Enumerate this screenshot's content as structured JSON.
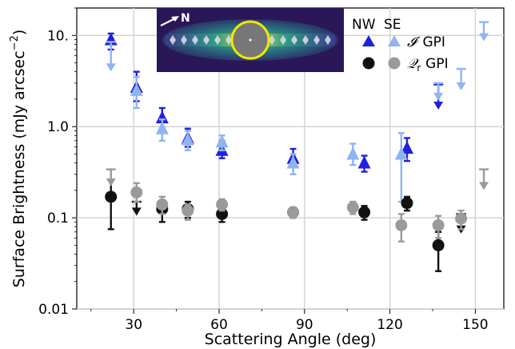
{
  "chart_data": {
    "type": "scatter",
    "title": "",
    "xlabel": "Scattering Angle (deg)",
    "ylabel": "Surface Brightness (mJy arcsec$^{-2}$)",
    "ylabel_parts": [
      "Surface Brightness (mJy arcsec",
      "−2",
      ")"
    ],
    "xlim": [
      10,
      160
    ],
    "ylim": [
      0.01,
      20
    ],
    "yscale": "log",
    "xticks": [
      30,
      60,
      90,
      120,
      150
    ],
    "xtick_labels": [
      "30",
      "60",
      "90",
      "120",
      "150"
    ],
    "yticks": [
      0.01,
      0.1,
      1.0,
      10
    ],
    "ytick_labels": [
      "0.01",
      "0.1",
      "1.0",
      "10."
    ],
    "grid": true,
    "legend": {
      "position": "top-right",
      "headers": [
        "NW",
        "SE"
      ],
      "rows": [
        {
          "label_symbol": "𝓘",
          "label_text": "GPI",
          "marker": "triangle"
        },
        {
          "label_symbol": "𝒬",
          "label_sub": "r",
          "label_text": "GPI",
          "marker": "circle"
        }
      ]
    },
    "colors": {
      "I_NW": "#2020e0",
      "I_SE": "#8fb4f0",
      "Q_NW": "#111111",
      "Q_SE": "#9a9a9a"
    },
    "series": [
      {
        "name": "𝓘 GPI NW",
        "marker": "triangle",
        "color_key": "I_NW",
        "points": [
          {
            "x": 22,
            "y": 9.0,
            "lo": 7.0,
            "hi": 10.5
          },
          {
            "x": 31,
            "y": 2.7,
            "lo": 1.9,
            "hi": 4.0
          },
          {
            "x": 40,
            "y": 1.25,
            "lo": 0.95,
            "hi": 1.6
          },
          {
            "x": 49,
            "y": 0.75,
            "lo": 0.6,
            "hi": 0.95
          },
          {
            "x": 61,
            "y": 0.55,
            "lo": 0.45,
            "hi": 0.7
          },
          {
            "x": 86,
            "y": 0.45,
            "lo": 0.38,
            "hi": 0.57
          },
          {
            "x": 111,
            "y": 0.4,
            "lo": 0.32,
            "hi": 0.48
          },
          {
            "x": 126,
            "y": 0.58,
            "lo": 0.42,
            "hi": 0.75
          },
          {
            "x": 137,
            "y": 2.9,
            "upper_limit": true,
            "arrow_to": 1.6
          }
        ]
      },
      {
        "name": "𝓘 GPI SE",
        "marker": "triangle",
        "color_key": "I_SE",
        "points": [
          {
            "x": 22,
            "y": 8.5,
            "upper_limit": true,
            "arrow_to": 4.2
          },
          {
            "x": 31,
            "y": 2.5,
            "lo": 1.6,
            "hi": 3.5
          },
          {
            "x": 40,
            "y": 0.95,
            "lo": 0.7,
            "hi": 1.2
          },
          {
            "x": 49,
            "y": 0.72,
            "lo": 0.55,
            "hi": 0.9
          },
          {
            "x": 61,
            "y": 0.68,
            "lo": 0.55,
            "hi": 0.8
          },
          {
            "x": 86,
            "y": 0.4,
            "lo": 0.3,
            "hi": 0.5
          },
          {
            "x": 107,
            "y": 0.5,
            "lo": 0.38,
            "hi": 0.65
          },
          {
            "x": 124,
            "y": 0.5,
            "lo": 0.15,
            "hi": 0.85
          },
          {
            "x": 137,
            "y": 3.0,
            "upper_limit": true,
            "arrow_to": 2.0
          },
          {
            "x": 145,
            "y": 4.3,
            "upper_limit": true,
            "arrow_to": 2.6
          },
          {
            "x": 153,
            "y": 14.0,
            "upper_limit": true,
            "arrow_to": 9.0
          }
        ]
      },
      {
        "name": "𝒬r GPI NW",
        "marker": "circle",
        "color_key": "Q_NW",
        "points": [
          {
            "x": 22,
            "y": 0.17,
            "lo": 0.075,
            "hi": 0.26
          },
          {
            "x": 31,
            "y": 0.15,
            "upper_limit": true,
            "arrow_to": 0.11
          },
          {
            "x": 40,
            "y": 0.125,
            "lo": 0.09,
            "hi": 0.15
          },
          {
            "x": 49,
            "y": 0.125,
            "lo": 0.1,
            "hi": 0.15
          },
          {
            "x": 61,
            "y": 0.11,
            "lo": 0.09,
            "hi": 0.13
          },
          {
            "x": 86,
            "y": 0.115,
            "lo": 0.1,
            "hi": 0.13
          },
          {
            "x": 111,
            "y": 0.115,
            "lo": 0.095,
            "hi": 0.135
          },
          {
            "x": 126,
            "y": 0.145,
            "lo": 0.12,
            "hi": 0.17
          },
          {
            "x": 137,
            "y": 0.05,
            "lo": 0.026,
            "hi": 0.07
          },
          {
            "x": 145,
            "y": 0.11,
            "upper_limit": true,
            "arrow_to": 0.07
          }
        ]
      },
      {
        "name": "𝒬r GPI SE",
        "marker": "circle",
        "color_key": "Q_SE",
        "points": [
          {
            "x": 22,
            "y": 0.34,
            "upper_limit": true,
            "arrow_to": 0.23
          },
          {
            "x": 31,
            "y": 0.19,
            "lo": 0.15,
            "hi": 0.24
          },
          {
            "x": 40,
            "y": 0.14,
            "lo": 0.11,
            "hi": 0.17
          },
          {
            "x": 49,
            "y": 0.12,
            "lo": 0.095,
            "hi": 0.14
          },
          {
            "x": 61,
            "y": 0.14,
            "lo": 0.12,
            "hi": 0.16
          },
          {
            "x": 86,
            "y": 0.115,
            "lo": 0.1,
            "hi": 0.13
          },
          {
            "x": 107,
            "y": 0.13,
            "lo": 0.11,
            "hi": 0.15
          },
          {
            "x": 124,
            "y": 0.083,
            "lo": 0.055,
            "hi": 0.11
          },
          {
            "x": 137,
            "y": 0.083,
            "lo": 0.06,
            "hi": 0.105
          },
          {
            "x": 145,
            "y": 0.098,
            "lo": 0.075,
            "hi": 0.12
          },
          {
            "x": 153,
            "y": 0.34,
            "upper_limit": true,
            "arrow_to": 0.21
          }
        ]
      }
    ],
    "inset": {
      "compass_label": "N",
      "description": "disk image with bright ring and diamond markers"
    }
  }
}
